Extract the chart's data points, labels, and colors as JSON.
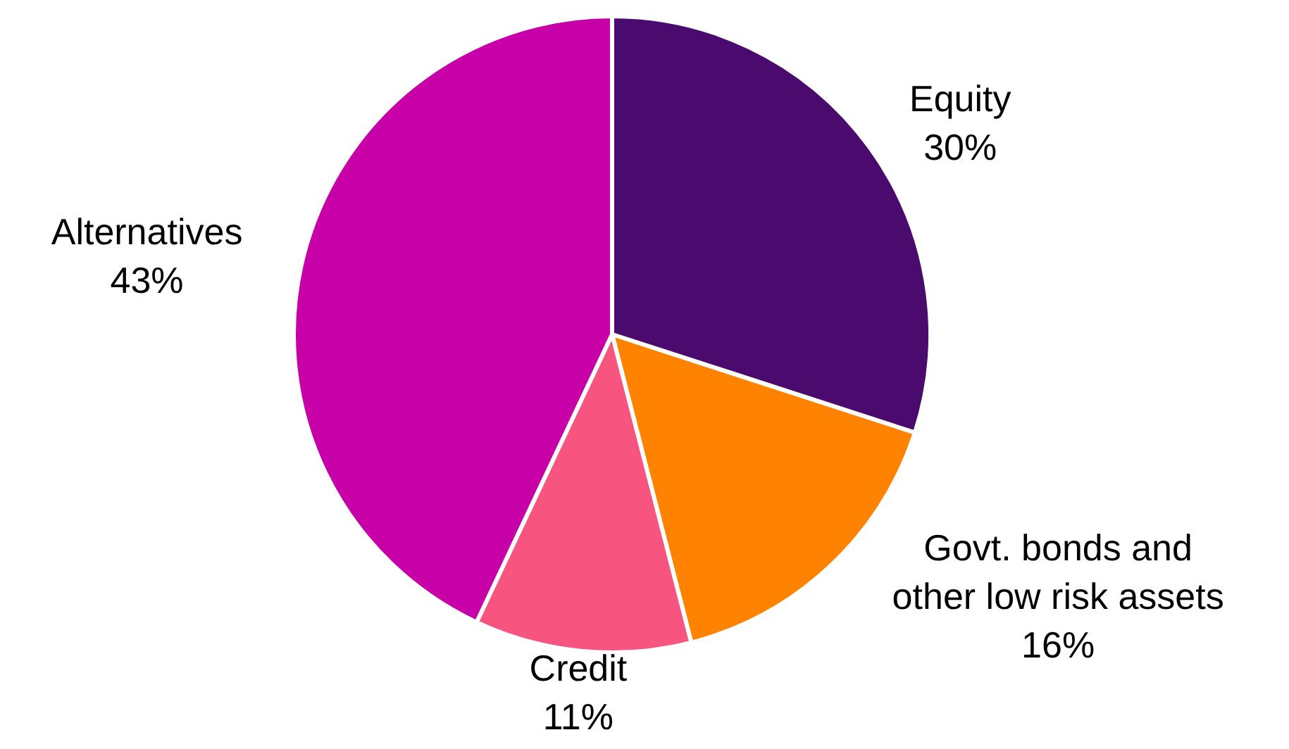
{
  "chart_data": {
    "type": "pie",
    "categories": [
      "Equity",
      "Govt. bonds and\nother low risk assets",
      "Credit",
      "Alternatives"
    ],
    "values": [
      30,
      16,
      11,
      43
    ],
    "value_labels": [
      "30%",
      "16%",
      "11%",
      "43%"
    ],
    "colors": [
      "#4b0a6e",
      "#ff8200",
      "#f75480",
      "#c800a8"
    ]
  }
}
